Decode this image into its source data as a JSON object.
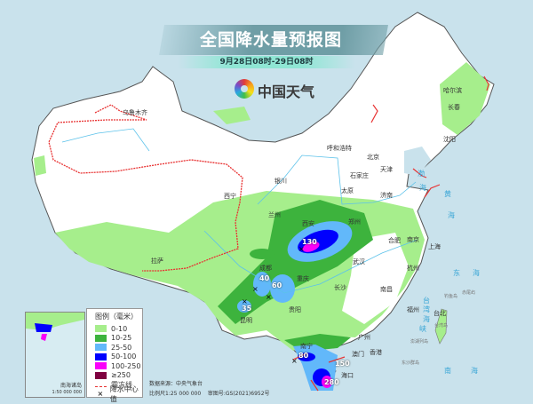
{
  "header": {
    "title": "全国降水量预报图",
    "subtitle": "9月28日08时-29日08时",
    "brand": "中国天气"
  },
  "legend": {
    "title": "图例（毫米）",
    "items": [
      {
        "label": "0-10",
        "color": "#a6ee8c"
      },
      {
        "label": "10-25",
        "color": "#3db33d"
      },
      {
        "label": "25-50",
        "color": "#62b8fa"
      },
      {
        "label": "50-100",
        "color": "#0000fe"
      },
      {
        "label": "100-250",
        "color": "#fa00fa"
      },
      {
        "label": "≥250",
        "color": "#7f0040"
      }
    ],
    "frost_line": "霜冻线",
    "center_value": "降水中心值"
  },
  "footer": {
    "source": "数据来源：中央气象台",
    "scale": "比例尺1:25 000 000",
    "review": "审图号:GS(2021)6952号"
  },
  "inset": {
    "name": "南海诸岛",
    "scale": "1:50 000 000"
  },
  "cities": [
    "乌鲁木齐",
    "哈尔滨",
    "长春",
    "沈阳",
    "呼和浩特",
    "北京",
    "天津",
    "石家庄",
    "太原",
    "济南",
    "银川",
    "西宁",
    "兰州",
    "西安",
    "郑州",
    "合肥",
    "南京",
    "上海",
    "杭州",
    "武汉",
    "成都",
    "重庆",
    "长沙",
    "南昌",
    "福州",
    "台北",
    "贵阳",
    "昆明",
    "拉萨",
    "广州",
    "香港",
    "澳门",
    "南宁",
    "海口"
  ],
  "seas": [
    "渤",
    "海",
    "黄",
    "海",
    "东",
    "海",
    "南",
    "海",
    "台",
    "湾",
    "海",
    "峡"
  ],
  "islands": [
    "钓鱼岛",
    "赤尾屿",
    "台湾岛",
    "澎湖列岛",
    "东沙群岛"
  ],
  "rain_centers": [
    "130",
    "40",
    "60",
    "35",
    "80",
    "150",
    "280"
  ]
}
